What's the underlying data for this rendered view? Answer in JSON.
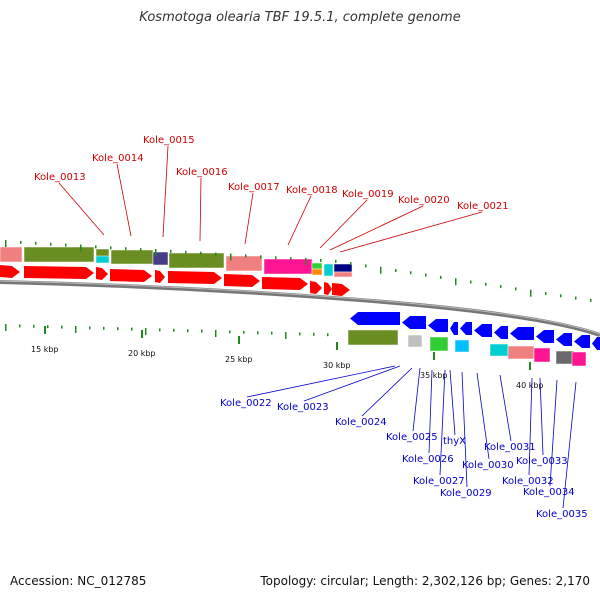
{
  "title": "Kosmotoga olearia TBF 19.5.1, complete genome",
  "footer": {
    "accession": "Accession: NC_012785",
    "summary": "Topology: circular; Length: 2,302,126 bp; Genes: 2,170"
  },
  "colors": {
    "forward_label": "#cc0000",
    "reverse_label": "#0000cc",
    "forward_cds": "#ff0000",
    "reverse_cds": "#0000ff",
    "backbone": "#888888",
    "tick": "#228822"
  },
  "scale_ticks": [
    "15 kbp",
    "20 kbp",
    "25 kbp",
    "30 kbp",
    "35 kbp",
    "40 kbp"
  ],
  "forward_labels": [
    "Kole_0013",
    "Kole_0014",
    "Kole_0015",
    "Kole_0016",
    "Kole_0017",
    "Kole_0018",
    "Kole_0019",
    "Kole_0020",
    "Kole_0021"
  ],
  "reverse_labels": [
    "Kole_0022",
    "Kole_0023",
    "Kole_0024",
    "Kole_0025",
    "Kole_0026",
    "thyX",
    "Kole_0027",
    "Kole_0029",
    "Kole_0030",
    "Kole_0031",
    "Kole_0032",
    "Kole_0033",
    "Kole_0034",
    "Kole_0035"
  ],
  "cog_colors": [
    "#f08080",
    "#6b8e23",
    "#00ced1",
    "#483d8b",
    "#ff1493",
    "#32cd32",
    "#ff8c00",
    "#000080",
    "#c0c0c0",
    "#00bfff",
    "#696969"
  ]
}
